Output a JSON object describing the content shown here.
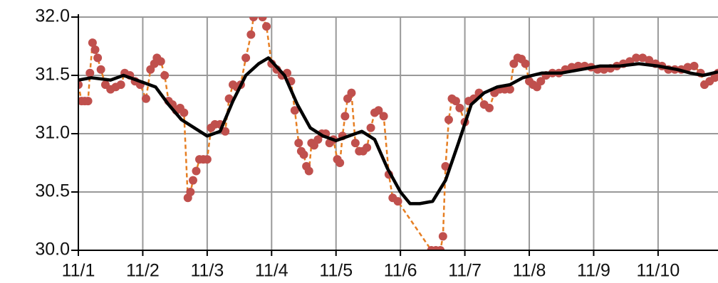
{
  "chart_data": {
    "type": "line",
    "xlim": [
      1,
      10.93
    ],
    "ylim": [
      30,
      32
    ],
    "xticks": [
      {
        "value": 1,
        "label": "11/1"
      },
      {
        "value": 2,
        "label": "11/2"
      },
      {
        "value": 3,
        "label": "11/3"
      },
      {
        "value": 4,
        "label": "11/4"
      },
      {
        "value": 5,
        "label": "11/5"
      },
      {
        "value": 6,
        "label": "11/6"
      },
      {
        "value": 7,
        "label": "11/7"
      },
      {
        "value": 8,
        "label": "11/8"
      },
      {
        "value": 9,
        "label": "11/9"
      },
      {
        "value": 10,
        "label": "11/10"
      }
    ],
    "yticks": [
      {
        "value": 30,
        "label": "30.0"
      },
      30.5,
      {
        "value": 31,
        "label": "31.0"
      },
      31.5,
      {
        "value": 32,
        "label": "32.0"
      }
    ],
    "grid": true,
    "series": [
      {
        "style": "dots",
        "color": "#c0504d",
        "line_color": "#e67e22",
        "x": [
          1.0,
          1.05,
          1.1,
          1.15,
          1.18,
          1.22,
          1.26,
          1.3,
          1.35,
          1.42,
          1.5,
          1.58,
          1.66,
          1.72,
          1.8,
          1.88,
          1.96,
          2.05,
          2.12,
          2.18,
          2.22,
          2.28,
          2.34,
          2.4,
          2.46,
          2.52,
          2.58,
          2.64,
          2.7,
          2.74,
          2.78,
          2.83,
          2.88,
          2.94,
          3.0,
          3.06,
          3.12,
          3.2,
          3.28,
          3.34,
          3.4,
          3.46,
          3.52,
          3.6,
          3.68,
          3.72,
          3.86,
          3.92,
          4.0,
          4.08,
          4.16,
          4.24,
          4.3,
          4.36,
          4.42,
          4.46,
          4.5,
          4.54,
          4.58,
          4.62,
          4.66,
          4.72,
          4.78,
          4.84,
          4.9,
          4.96,
          5.02,
          5.06,
          5.1,
          5.14,
          5.18,
          5.24,
          5.3,
          5.36,
          5.42,
          5.48,
          5.54,
          5.6,
          5.66,
          5.74,
          5.82,
          5.88,
          5.96,
          6.48,
          6.55,
          6.62,
          6.66,
          6.7,
          6.75,
          6.8,
          6.86,
          6.92,
          7.0,
          7.06,
          7.14,
          7.22,
          7.3,
          7.38,
          7.46,
          7.54,
          7.62,
          7.7,
          7.76,
          7.82,
          7.88,
          7.94,
          8.0,
          8.06,
          8.12,
          8.18,
          8.26,
          8.36,
          8.46,
          8.56,
          8.66,
          8.76,
          8.86,
          8.96,
          9.06,
          9.16,
          9.26,
          9.36,
          9.46,
          9.56,
          9.66,
          9.76,
          9.86,
          9.96,
          10.06,
          10.16,
          10.26,
          10.36,
          10.46,
          10.56,
          10.66,
          10.72,
          10.8,
          10.88,
          10.93
        ],
        "values": [
          31.42,
          31.28,
          31.28,
          31.28,
          31.52,
          31.78,
          31.72,
          31.65,
          31.55,
          31.42,
          31.38,
          31.4,
          31.42,
          31.52,
          31.5,
          31.45,
          31.42,
          31.3,
          31.55,
          31.6,
          31.65,
          31.62,
          31.5,
          31.28,
          31.25,
          31.2,
          31.22,
          31.18,
          30.45,
          30.5,
          30.6,
          30.68,
          30.78,
          30.78,
          30.78,
          31.05,
          31.08,
          31.08,
          31.02,
          31.3,
          31.42,
          31.4,
          31.42,
          31.65,
          31.85,
          32.0,
          32.0,
          31.92,
          31.6,
          31.55,
          31.5,
          31.52,
          31.45,
          31.2,
          30.92,
          30.85,
          30.82,
          30.72,
          30.68,
          30.92,
          30.9,
          30.95,
          31.0,
          31.0,
          30.92,
          30.95,
          30.78,
          30.75,
          30.98,
          31.15,
          31.3,
          31.35,
          30.92,
          30.85,
          30.85,
          30.88,
          31.05,
          31.18,
          31.2,
          31.15,
          30.65,
          30.45,
          30.42,
          30.0,
          30.0,
          30.0,
          30.12,
          30.72,
          31.12,
          31.3,
          31.28,
          31.22,
          31.1,
          31.28,
          31.3,
          31.35,
          31.25,
          31.22,
          31.35,
          31.38,
          31.38,
          31.38,
          31.6,
          31.65,
          31.64,
          31.6,
          31.45,
          31.42,
          31.4,
          31.45,
          31.5,
          31.52,
          31.52,
          31.55,
          31.57,
          31.58,
          31.58,
          31.57,
          31.55,
          31.55,
          31.56,
          31.58,
          31.6,
          31.62,
          31.65,
          31.65,
          31.63,
          31.6,
          31.58,
          31.55,
          31.55,
          31.55,
          31.57,
          31.58,
          31.52,
          31.42,
          31.45,
          31.48,
          31.52
        ]
      },
      {
        "style": "line",
        "color": "#000000",
        "x": [
          1.0,
          1.2,
          1.5,
          1.7,
          2.0,
          2.2,
          2.4,
          2.6,
          2.8,
          3.0,
          3.2,
          3.4,
          3.6,
          3.8,
          3.95,
          4.2,
          4.4,
          4.6,
          4.8,
          5.0,
          5.2,
          5.4,
          5.6,
          5.8,
          6.0,
          6.15,
          6.3,
          6.5,
          6.7,
          6.9,
          7.1,
          7.3,
          7.5,
          7.7,
          7.9,
          8.2,
          8.5,
          8.8,
          9.1,
          9.4,
          9.7,
          10.0,
          10.3,
          10.5,
          10.7,
          10.93
        ],
        "values": [
          31.46,
          31.48,
          31.46,
          31.5,
          31.44,
          31.4,
          31.25,
          31.12,
          31.05,
          30.98,
          31.02,
          31.28,
          31.5,
          31.6,
          31.65,
          31.5,
          31.25,
          31.05,
          30.98,
          30.94,
          30.98,
          31.02,
          30.95,
          30.7,
          30.5,
          30.4,
          30.4,
          30.42,
          30.6,
          30.92,
          31.25,
          31.35,
          31.4,
          31.42,
          31.48,
          31.52,
          31.52,
          31.55,
          31.58,
          31.58,
          31.6,
          31.58,
          31.55,
          31.52,
          31.5,
          31.53
        ]
      }
    ]
  }
}
